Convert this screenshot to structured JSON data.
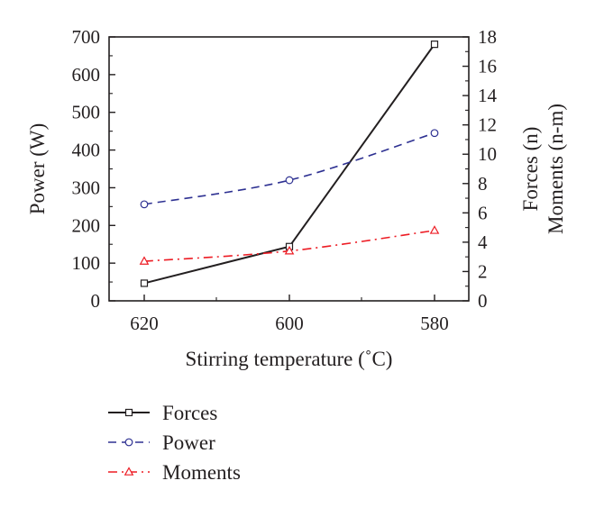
{
  "chart_data": {
    "type": "line",
    "categories": [
      "620",
      "600",
      "580"
    ],
    "xlabel": "Stirring temperature (˚C)",
    "ylabel_left": "Power (W)",
    "ylabel_right": [
      "Forces (n)",
      "Moments (n-m)"
    ],
    "ylim_left": [
      0,
      700
    ],
    "ylim_right": [
      0,
      18
    ],
    "yticks_left": [
      "0",
      "100",
      "200",
      "300",
      "400",
      "500",
      "600",
      "700"
    ],
    "yticks_right": [
      "0",
      "2",
      "4",
      "6",
      "8",
      "10",
      "12",
      "14",
      "16",
      "18"
    ],
    "grid": false,
    "legend_position": "bottom",
    "series": [
      {
        "name": "Forces",
        "axis": "right",
        "values": [
          1.2,
          3.7,
          17.5
        ],
        "color": "#231f20",
        "dash": "solid",
        "marker": "square",
        "curve": "linear"
      },
      {
        "name": "Power",
        "axis": "left",
        "values": [
          256,
          320,
          445
        ],
        "color": "#2e3192",
        "dash": "dashed",
        "marker": "circle",
        "curve": "smooth"
      },
      {
        "name": "Moments",
        "axis": "right",
        "values": [
          2.7,
          3.4,
          4.8
        ],
        "color": "#ed1c24",
        "dash": "dashdot",
        "marker": "triangle",
        "curve": "smooth"
      }
    ]
  }
}
